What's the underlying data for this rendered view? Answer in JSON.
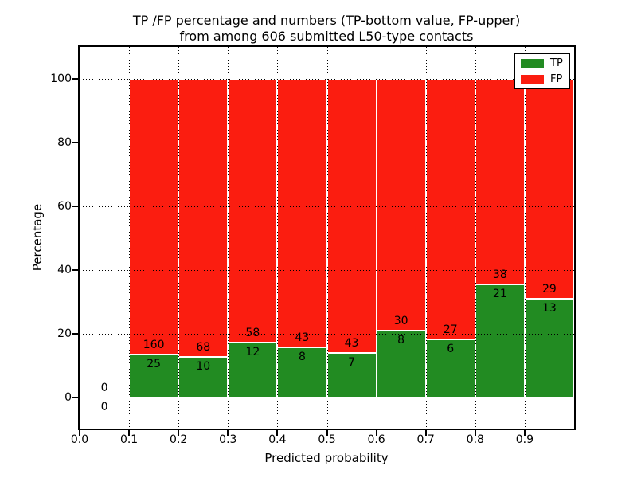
{
  "title": {
    "line1": "TP /FP percentage and numbers (TP-bottom value, FP-upper)",
    "line2": "from among 606 submitted L50-type contacts"
  },
  "axes": {
    "xlabel": "Predicted probability",
    "ylabel": "Percentage",
    "x_tick_labels": [
      "0.0",
      "0.1",
      "0.2",
      "0.3",
      "0.4",
      "0.5",
      "0.6",
      "0.7",
      "0.8",
      "0.9"
    ],
    "y_tick_labels": [
      "0",
      "20",
      "40",
      "60",
      "80",
      "100"
    ],
    "y_tick_values": [
      0,
      20,
      40,
      60,
      80,
      100
    ]
  },
  "legend": {
    "items": [
      {
        "label": "TP",
        "color": "#228b22"
      },
      {
        "label": "FP",
        "color": "#fb1d10"
      }
    ]
  },
  "colors": {
    "tp": "#228b22",
    "fp": "#fb1d10",
    "background": "#ffffff",
    "text": "#000000"
  },
  "chart_data": {
    "type": "bar",
    "stacked": true,
    "normalized_to_percent": true,
    "title": "TP /FP percentage and numbers (TP-bottom value, FP-upper) from among 606 submitted L50-type contacts",
    "xlabel": "Predicted probability",
    "ylabel": "Percentage",
    "xlim": [
      0.0,
      1.0
    ],
    "ylim": [
      -10,
      110
    ],
    "grid": "dotted",
    "legend_position": "upper right",
    "total_contacts": 606,
    "bin_width": 0.1,
    "bins": [
      {
        "x_range": [
          0.0,
          0.1
        ],
        "tp_count": 0,
        "fp_count": 0
      },
      {
        "x_range": [
          0.1,
          0.2
        ],
        "tp_count": 25,
        "fp_count": 160
      },
      {
        "x_range": [
          0.2,
          0.3
        ],
        "tp_count": 10,
        "fp_count": 68
      },
      {
        "x_range": [
          0.3,
          0.4
        ],
        "tp_count": 12,
        "fp_count": 58
      },
      {
        "x_range": [
          0.4,
          0.5
        ],
        "tp_count": 8,
        "fp_count": 43
      },
      {
        "x_range": [
          0.5,
          0.6
        ],
        "tp_count": 7,
        "fp_count": 43
      },
      {
        "x_range": [
          0.6,
          0.7
        ],
        "tp_count": 8,
        "fp_count": 30
      },
      {
        "x_range": [
          0.7,
          0.8
        ],
        "tp_count": 6,
        "fp_count": 27
      },
      {
        "x_range": [
          0.8,
          0.9
        ],
        "tp_count": 21,
        "fp_count": 38
      },
      {
        "x_range": [
          0.9,
          1.0
        ],
        "tp_count": 13,
        "fp_count": 29
      }
    ],
    "series": [
      {
        "name": "TP",
        "color": "#228b22",
        "values_pct": [
          0,
          13.51,
          12.82,
          17.14,
          15.69,
          14.0,
          21.05,
          18.18,
          35.59,
          30.95
        ]
      },
      {
        "name": "FP",
        "color": "#fb1d10",
        "values_pct": [
          0,
          86.49,
          87.18,
          82.86,
          84.31,
          86.0,
          78.95,
          81.82,
          64.41,
          69.05
        ]
      }
    ]
  }
}
